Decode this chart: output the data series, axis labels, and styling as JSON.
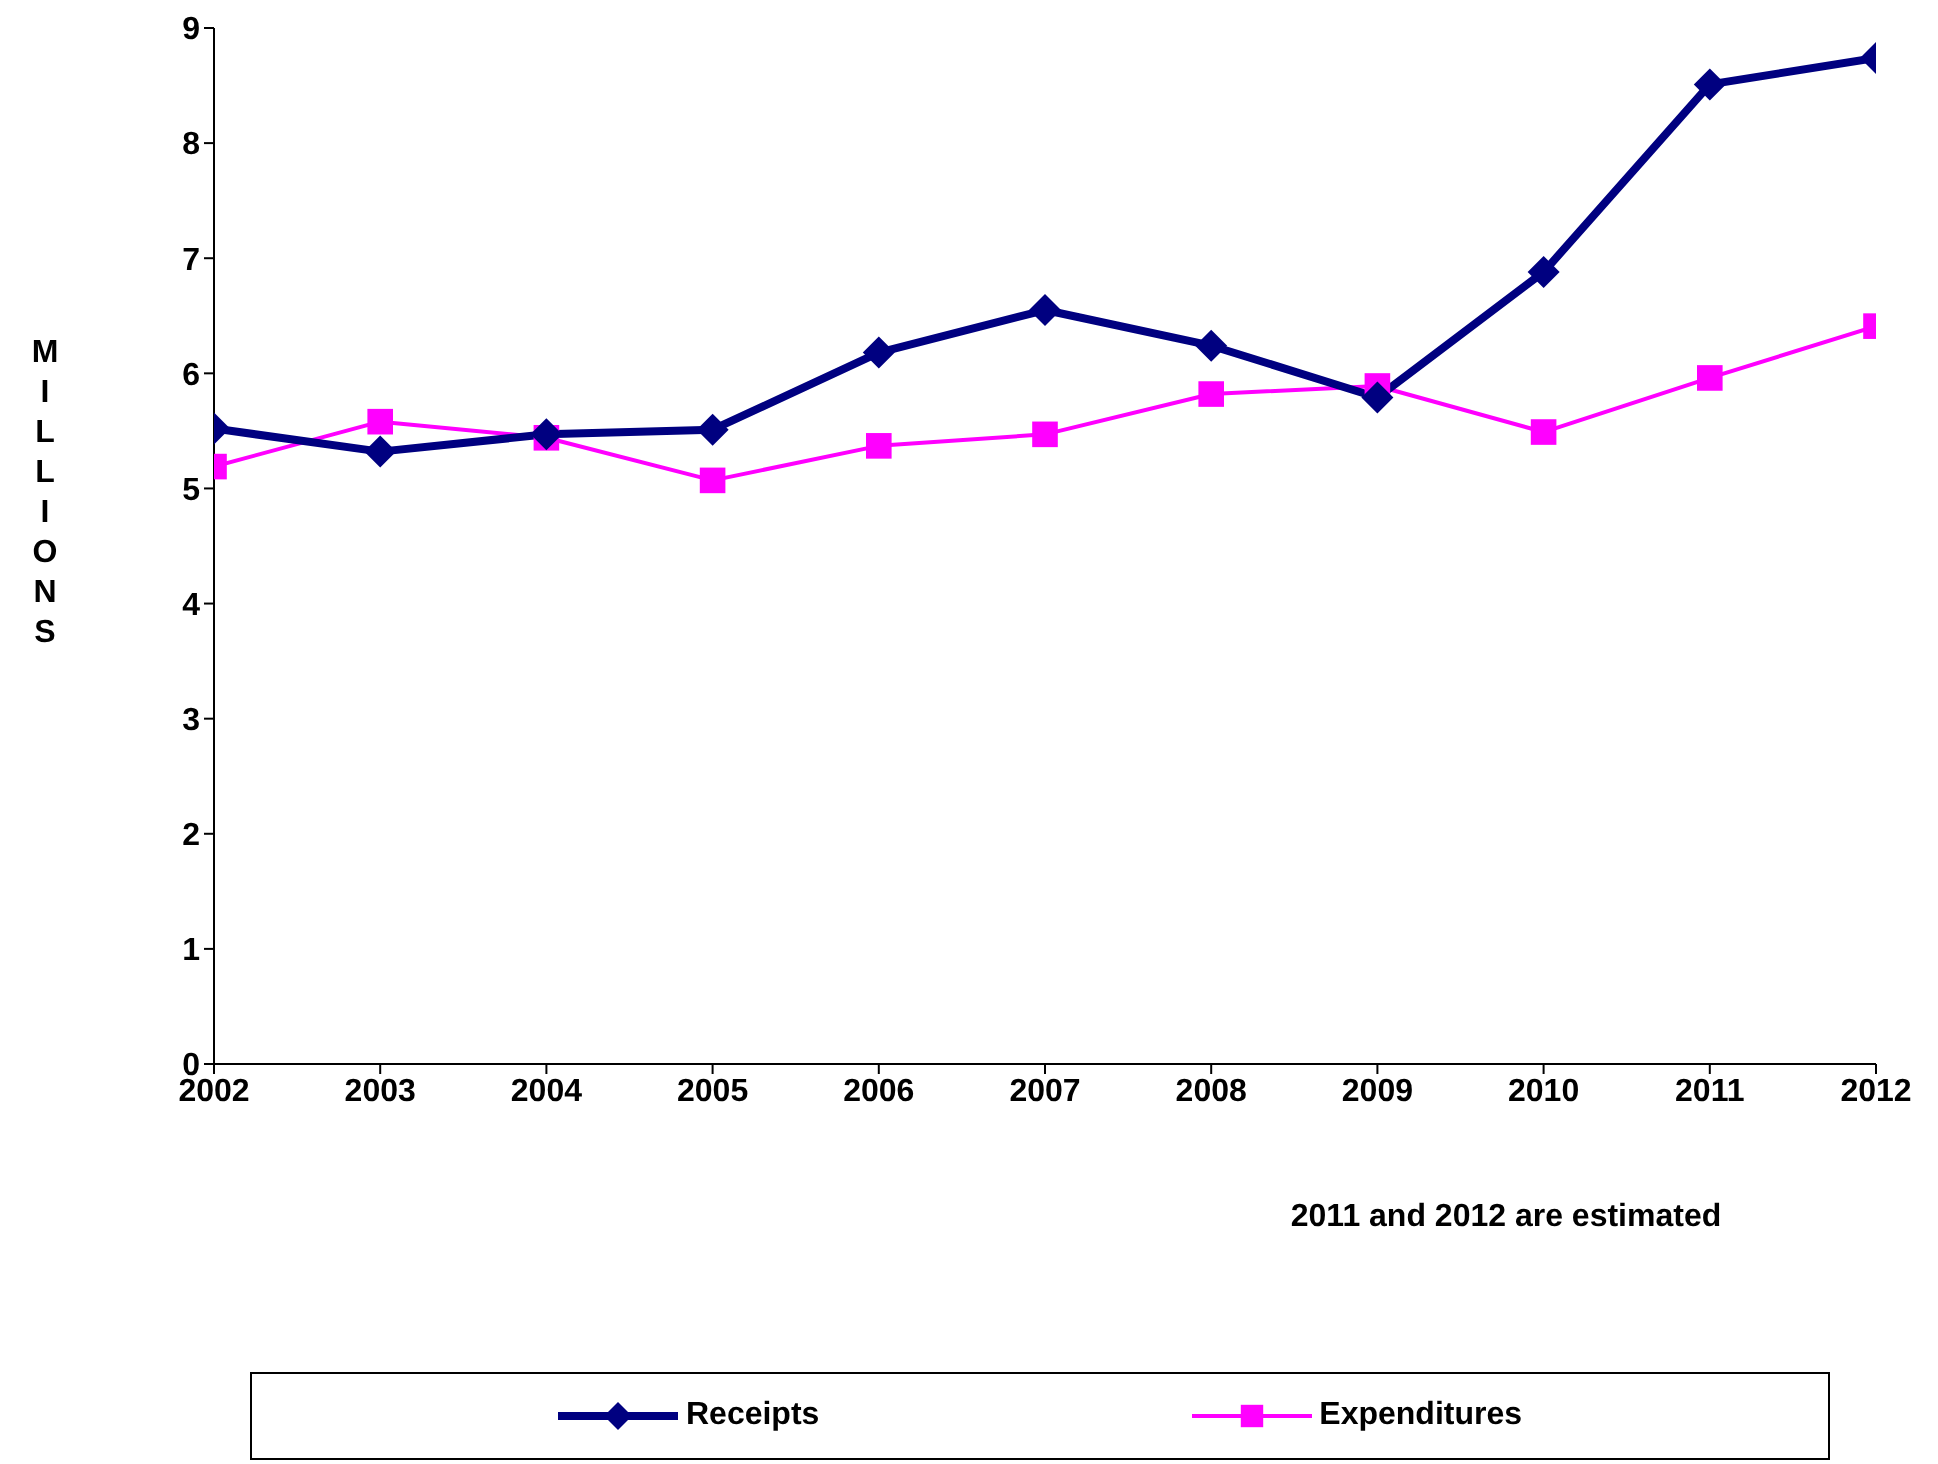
{
  "chart_data": {
    "type": "line",
    "ylabel": "MILLIONS",
    "annotations": [
      "2011 and 2012 are estimated"
    ],
    "x": [
      2002,
      2003,
      2004,
      2005,
      2006,
      2007,
      2008,
      2009,
      2010,
      2011,
      2012
    ],
    "xlim": [
      2002,
      2012
    ],
    "xticks": [
      2002,
      2003,
      2004,
      2005,
      2006,
      2007,
      2008,
      2009,
      2010,
      2011,
      2012
    ],
    "ylim": [
      0,
      9
    ],
    "yticks": [
      0,
      1,
      2,
      3,
      4,
      5,
      6,
      7,
      8,
      9
    ],
    "grid": false,
    "legend": "bottom",
    "series": [
      {
        "name": "Receipts",
        "color": "#000080",
        "marker": "diamond",
        "values": [
          5.52,
          5.32,
          5.47,
          5.51,
          6.18,
          6.55,
          6.24,
          5.79,
          6.88,
          8.51,
          8.74
        ]
      },
      {
        "name": "Expenditures",
        "color": "#ff00ff",
        "marker": "square",
        "values": [
          5.19,
          5.58,
          5.44,
          5.07,
          5.37,
          5.47,
          5.82,
          5.89,
          5.49,
          5.96,
          6.41
        ]
      }
    ]
  }
}
